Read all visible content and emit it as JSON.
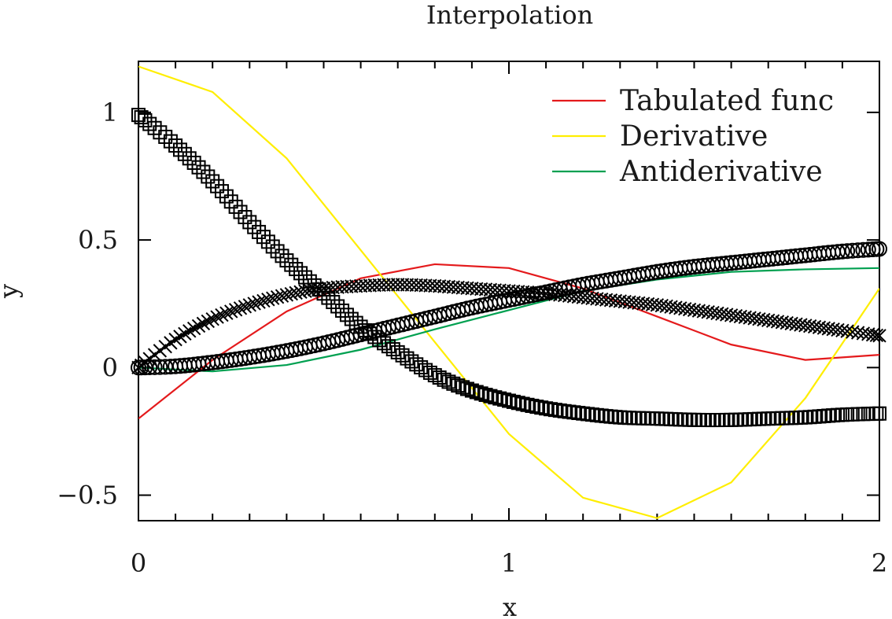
{
  "chart_data": {
    "type": "line",
    "title": "Interpolation",
    "xlabel": "x",
    "ylabel": "y",
    "xlim": [
      0,
      2
    ],
    "ylim": [
      -0.6,
      1.2
    ],
    "x_ticks": [
      0,
      1,
      2
    ],
    "x_tick_labels": [
      "0",
      "1",
      "2"
    ],
    "y_ticks": [
      -0.5,
      0,
      0.5,
      1
    ],
    "y_tick_labels": [
      "−0.5",
      "0",
      "0.5",
      "1"
    ],
    "grid": false,
    "legend_position": "top-right",
    "series": [
      {
        "name": "Tabulated func",
        "color": "#e41a1c",
        "style": "line",
        "x": [
          0,
          0.2,
          0.4,
          0.6,
          0.8,
          1.0,
          1.2,
          1.4,
          1.6,
          1.8,
          2.0
        ],
        "y": [
          -0.2,
          0.03,
          0.22,
          0.35,
          0.405,
          0.39,
          0.31,
          0.2,
          0.09,
          0.03,
          0.05
        ]
      },
      {
        "name": "Derivative",
        "color": "#ffee00",
        "style": "line",
        "x": [
          0,
          0.2,
          0.4,
          0.6,
          0.8,
          1.0,
          1.2,
          1.4,
          1.6,
          1.8,
          2.0
        ],
        "y": [
          1.18,
          1.08,
          0.82,
          0.46,
          0.1,
          -0.26,
          -0.51,
          -0.59,
          -0.45,
          -0.12,
          0.31
        ]
      },
      {
        "name": "Antiderivative",
        "color": "#00a050",
        "style": "line",
        "x": [
          0,
          0.2,
          0.4,
          0.6,
          0.8,
          1.0,
          1.2,
          1.4,
          1.6,
          1.8,
          2.0
        ],
        "y": [
          0,
          -0.015,
          0.01,
          0.07,
          0.15,
          0.225,
          0.3,
          0.345,
          0.375,
          0.385,
          0.39
        ]
      },
      {
        "style": "markers",
        "marker": "square",
        "color": "#000000",
        "x": [
          0,
          0.1,
          0.2,
          0.3,
          0.4,
          0.5,
          0.6,
          0.7,
          0.8,
          0.9,
          1.0,
          1.1,
          1.2,
          1.3,
          1.4,
          1.5,
          1.6,
          1.7,
          1.8,
          1.9,
          2.0
        ],
        "y": [
          0.99,
          0.87,
          0.73,
          0.57,
          0.42,
          0.29,
          0.16,
          0.06,
          -0.03,
          -0.09,
          -0.13,
          -0.16,
          -0.18,
          -0.195,
          -0.2,
          -0.205,
          -0.205,
          -0.2,
          -0.195,
          -0.185,
          -0.18
        ]
      },
      {
        "style": "markers",
        "marker": "x",
        "color": "#000000",
        "x": [
          0,
          0.1,
          0.2,
          0.3,
          0.4,
          0.5,
          0.6,
          0.7,
          0.8,
          0.9,
          1.0,
          1.1,
          1.2,
          1.3,
          1.4,
          1.5,
          1.6,
          1.7,
          1.8,
          1.9,
          2.0
        ],
        "y": [
          0,
          0.11,
          0.19,
          0.245,
          0.285,
          0.31,
          0.32,
          0.325,
          0.32,
          0.31,
          0.3,
          0.29,
          0.275,
          0.26,
          0.245,
          0.225,
          0.205,
          0.185,
          0.165,
          0.145,
          0.125
        ]
      },
      {
        "style": "markers",
        "marker": "circle",
        "color": "#000000",
        "x": [
          0,
          0.1,
          0.2,
          0.3,
          0.4,
          0.5,
          0.6,
          0.7,
          0.8,
          0.9,
          1.0,
          1.1,
          1.2,
          1.3,
          1.4,
          1.5,
          1.6,
          1.7,
          1.8,
          1.9,
          2.0
        ],
        "y": [
          0,
          0.005,
          0.02,
          0.04,
          0.065,
          0.095,
          0.13,
          0.165,
          0.2,
          0.235,
          0.265,
          0.295,
          0.325,
          0.35,
          0.375,
          0.395,
          0.41,
          0.425,
          0.44,
          0.455,
          0.465
        ]
      }
    ]
  }
}
